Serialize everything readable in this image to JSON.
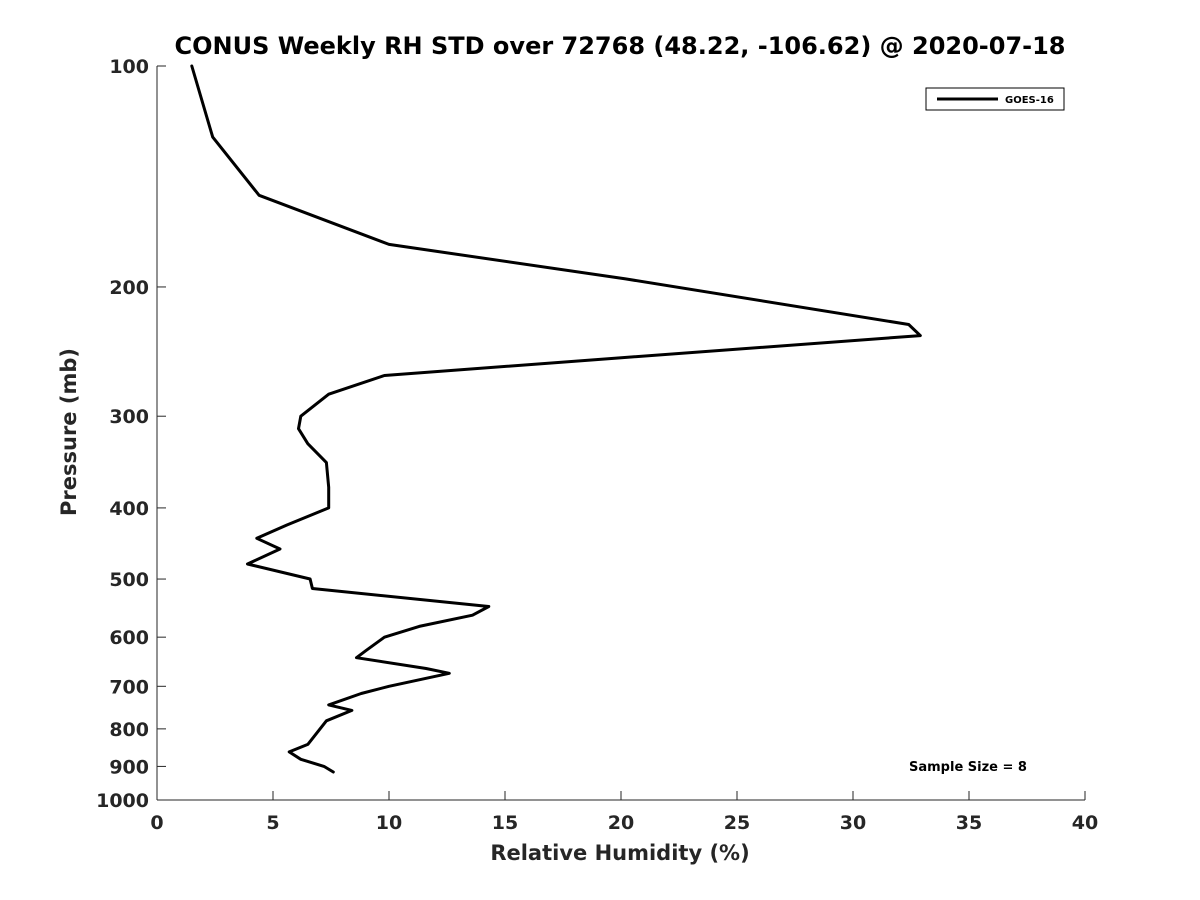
{
  "chart_data": {
    "type": "line",
    "title": "CONUS Weekly RH STD over 72768 (48.22, -106.62) @ 2020-07-18",
    "xlabel": "Relative Humidity (%)",
    "ylabel": "Pressure (mb)",
    "xlim": [
      0,
      40
    ],
    "ylim": [
      100,
      1000
    ],
    "yscale": "log",
    "yreversed": true,
    "xticks": [
      0,
      5,
      10,
      15,
      20,
      25,
      30,
      35,
      40
    ],
    "xtick_labels": [
      "0",
      "5",
      "10",
      "15",
      "20",
      "25",
      "30",
      "35",
      "40"
    ],
    "yticks": [
      100,
      200,
      300,
      400,
      500,
      600,
      700,
      800,
      900,
      1000
    ],
    "ytick_labels": [
      "100",
      "200",
      "300",
      "400",
      "500",
      "600",
      "700",
      "800",
      "900",
      "1000"
    ],
    "grid": false,
    "legend_position": "top-right",
    "annotation": "Sample Size = 8",
    "series": [
      {
        "name": "GOES-16",
        "color": "#000000",
        "points": [
          [
            1.5,
            100
          ],
          [
            2.4,
            125
          ],
          [
            4.4,
            150
          ],
          [
            10.0,
            175
          ],
          [
            20.2,
            195
          ],
          [
            32.4,
            225
          ],
          [
            32.9,
            233
          ],
          [
            19.8,
            250
          ],
          [
            9.8,
            264
          ],
          [
            7.4,
            280
          ],
          [
            6.2,
            300
          ],
          [
            6.1,
            312
          ],
          [
            6.5,
            327
          ],
          [
            7.3,
            347
          ],
          [
            7.4,
            375
          ],
          [
            7.4,
            400
          ],
          [
            5.6,
            422
          ],
          [
            4.3,
            440
          ],
          [
            5.3,
            455
          ],
          [
            3.9,
            477
          ],
          [
            6.6,
            500
          ],
          [
            6.7,
            515
          ],
          [
            14.3,
            545
          ],
          [
            13.6,
            560
          ],
          [
            11.3,
            580
          ],
          [
            9.8,
            600
          ],
          [
            9.0,
            626
          ],
          [
            8.6,
            640
          ],
          [
            11.6,
            662
          ],
          [
            12.6,
            672
          ],
          [
            10.0,
            700
          ],
          [
            8.8,
            716
          ],
          [
            7.4,
            742
          ],
          [
            8.4,
            755
          ],
          [
            7.3,
            780
          ],
          [
            6.5,
            840
          ],
          [
            5.7,
            860
          ],
          [
            6.2,
            880
          ],
          [
            7.2,
            900
          ],
          [
            7.6,
            916
          ]
        ]
      }
    ]
  }
}
